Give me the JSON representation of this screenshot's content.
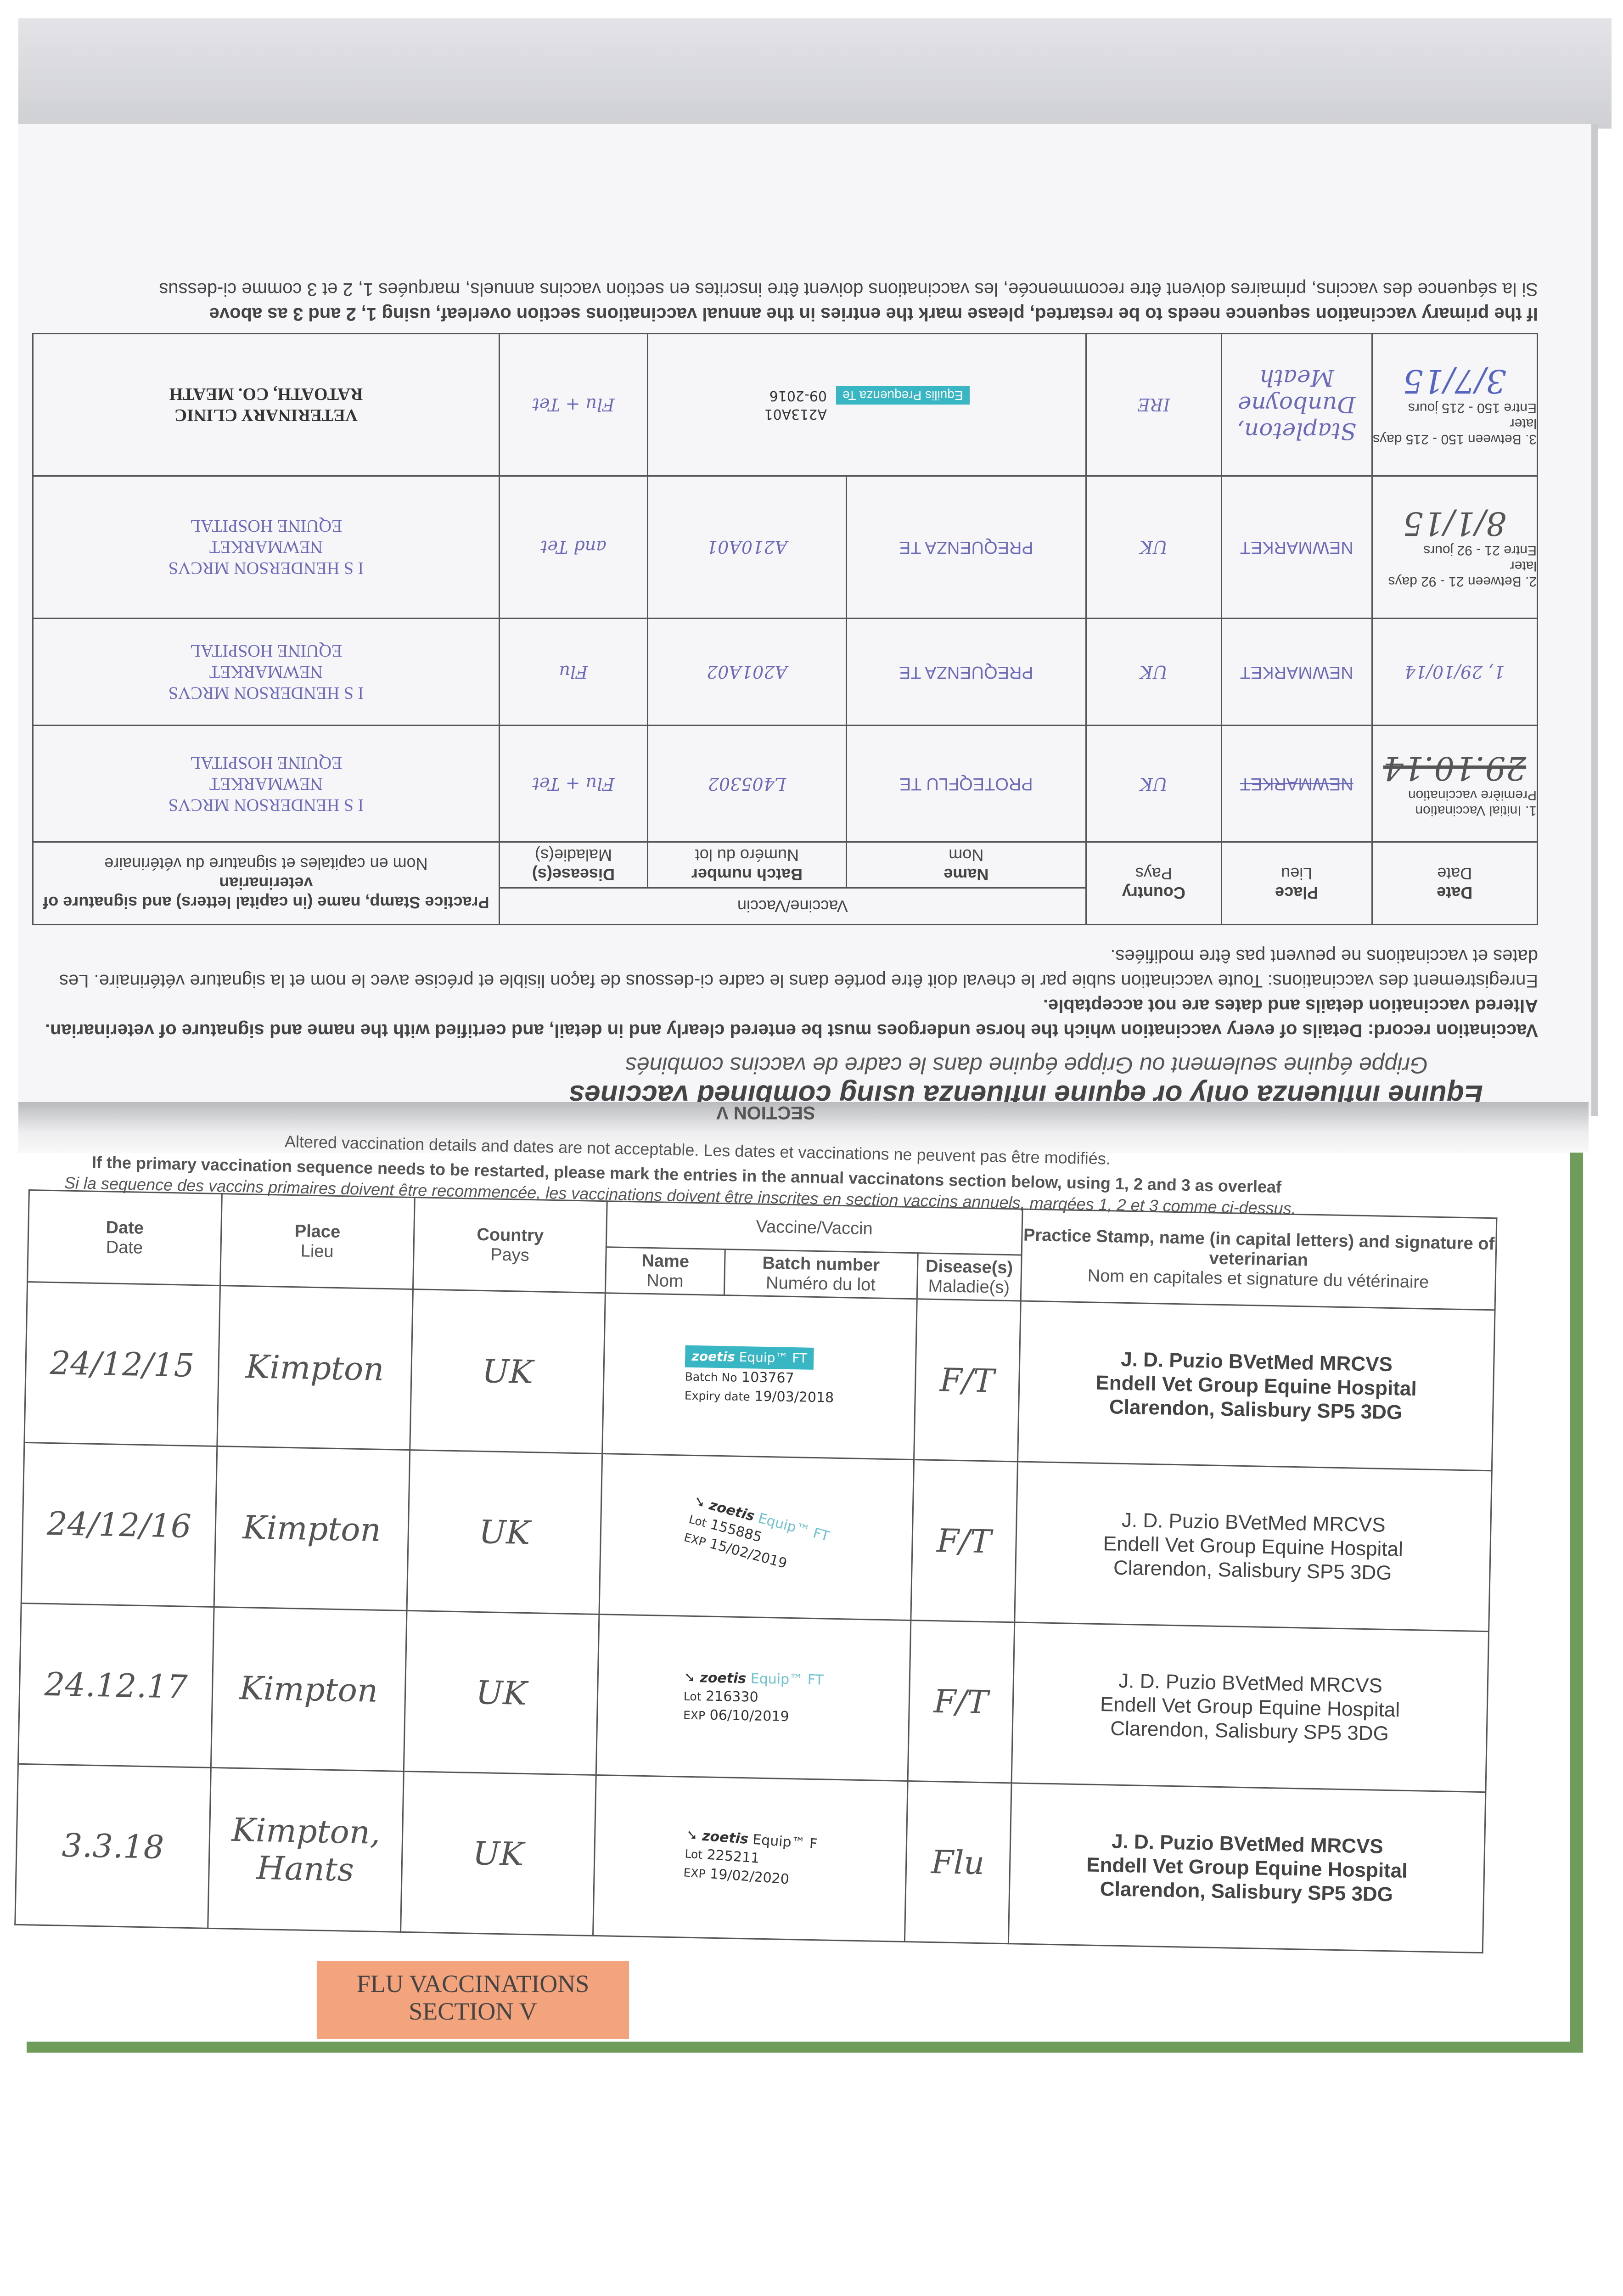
{
  "upper_page": {
    "headline": "Equine influenza only or equine influenza using combined vaccines",
    "subheadline": "Grippe équine seulement ou Grippe équine dans le cadre de vaccins combinés",
    "intro_en": "Vaccination record: Details of every vaccination which the horse undergoes must be entered clearly and in detail, and certified with the name and signature of veterinarian. Altered vaccination details and dates are not acceptable.",
    "intro_fr": "Enregistrement des vaccinations: Toute vaccination subie par le cheval doit être portée dans le cadre ci-dessous de façon lisible et précise avec le nom et la signature vétérinaire. Les dates et vaccinations ne peuvent pas être modifiées.",
    "headers": {
      "date": "Date",
      "date_fr": "Date",
      "place": "Place",
      "place_fr": "Lieu",
      "country": "Country",
      "country_fr": "Pays",
      "vaccine": "Vaccine/Vaccin",
      "name": "Name",
      "name_fr": "Nom",
      "batch": "Batch number",
      "batch_fr": "Numéro du lot",
      "disease": "Disease(s)",
      "disease_fr": "Maladie(s)",
      "stamp": "Practice Stamp, name (in capital letters) and signature of veterinarian",
      "stamp_fr": "Nom en capitales et signature du vétérinaire"
    },
    "rows": [
      {
        "label": "1. Initial Vaccination",
        "label_fr": "Première vaccination",
        "date": "29.10.14",
        "place": "NEWMARKET",
        "country": "UK",
        "name": "PROTEQFLU TE",
        "batch": "L405302",
        "disease": "Flu + Tet",
        "stamp": [
          "I S HENDERSON MRCVS",
          "NEWMARKET",
          "EQUINE HOSPITAL"
        ]
      },
      {
        "label": "",
        "label_fr": "",
        "date": "1, 29/10/14",
        "place": "NEWMARKET",
        "country": "UK",
        "name": "PREQUENZA TE",
        "batch": "A201A02",
        "disease": "Flu",
        "stamp": [
          "I S HENDERSON MRCVS",
          "NEWMARKET",
          "EQUINE HOSPITAL"
        ]
      },
      {
        "label": "2. Between 21 - 92 days later",
        "label_fr": "Entre 21 - 92 jours",
        "date": "8/1/15",
        "place": "NEWMARKET",
        "country": "UK",
        "name": "PREQUENZA TE",
        "batch": "A210A01",
        "disease": "and Tet",
        "stamp": [
          "I S HENDERSON MRCVS",
          "NEWMARKET",
          "EQUINE HOSPITAL"
        ]
      },
      {
        "label": "3. Between 150 - 215 days later",
        "label_fr": "Entre 150 - 215 jours",
        "date": "3/7/15",
        "place": "Stapleton, Dunboyne Meath",
        "country": "IRE",
        "name": "Equilis Prequenza Te",
        "batch": "A213A01",
        "expiry": "09-2016",
        "disease": "Flu + Tet",
        "stamp": [
          "VETERINARY CLINIC",
          "RATOATH, CO. MEATH"
        ]
      }
    ],
    "footer_en": "If the primary vaccination sequence needs to be restarted, please mark the entries in the annual vaccinations section overleaf, using 1, 2 and 3 as above",
    "footer_fr": "Si la séquence des vaccins, primaires doivent être recommencée, les vaccinations doivent être inscrites en section vaccins annuels, marquées 1, 2 et 3 comme ci-dessus"
  },
  "lower_page": {
    "section": "SECTION V",
    "note1": "Altered vaccination details and dates are not acceptable. Les dates et vaccinations ne peuvent pas être modifiés.",
    "note2": "If the primary vaccination sequence needs to be restarted, please mark the entries in the annual vaccinatons section below, using 1, 2 and 3 as overleaf",
    "note3": "Si la sequence des vaccins primaires doivent être recommencée, les vaccinations doivent être inscrites en section vaccins annuels, marqées 1, 2 et 3 comme ci-dessus.",
    "headers": {
      "date": "Date",
      "date_fr": "Date",
      "place": "Place",
      "place_fr": "Lieu",
      "country": "Country",
      "country_fr": "Pays",
      "vaccine": "Vaccine/Vaccin",
      "name": "Name",
      "name_fr": "Nom",
      "batch": "Batch number",
      "batch_fr": "Numéro du lot",
      "disease": "Disease(s)",
      "disease_fr": "Maladie(s)",
      "stamp": "Practice Stamp, name (in capital letters) and signature of veterinarian",
      "stamp_fr": "Nom en capitales et signature du vétérinaire"
    },
    "rows": [
      {
        "date": "24/12/15",
        "place": "Kimpton",
        "country": "UK",
        "brand": "zoetis",
        "product": "Equip™ FT",
        "lot_label": "Batch No",
        "lot": "103767",
        "exp_label": "Expiry date",
        "exp": "19/03/2018",
        "disease": "F/T",
        "vet": [
          "J. D. Puzio BVetMed MRCVS",
          "Endell Vet Group Equine Hospital",
          "Clarendon, Salisbury SP5 3DG"
        ]
      },
      {
        "date": "24/12/16",
        "place": "Kimpton",
        "country": "UK",
        "brand": "zoetis",
        "product": "Equip™ FT",
        "lot_label": "Lot",
        "lot": "155885",
        "exp_label": "EXP",
        "exp": "15/02/2019",
        "disease": "F/T",
        "vet": [
          "J. D. Puzio BVetMed MRCVS",
          "Endell Vet Group Equine Hospital",
          "Clarendon, Salisbury SP5 3DG"
        ]
      },
      {
        "date": "24.12.17",
        "place": "Kimpton",
        "country": "UK",
        "brand": "zoetis",
        "product": "Equip™ FT",
        "lot_label": "Lot",
        "lot": "216330",
        "exp_label": "EXP",
        "exp": "06/10/2019",
        "disease": "F/T",
        "vet": [
          "J. D. Puzio BVetMed MRCVS",
          "Endell Vet Group Equine Hospital",
          "Clarendon, Salisbury SP5 3DG"
        ]
      },
      {
        "date": "3.3.18",
        "place": "Kimpton, Hants",
        "country": "UK",
        "brand": "zoetis",
        "product": "Equip™ F",
        "lot_label": "Lot",
        "lot": "225211",
        "exp_label": "EXP",
        "exp": "19/02/2020",
        "disease": "Flu",
        "vet": [
          "J. D. Puzio BVetMed MRCVS",
          "Endell Vet Group Equine Hospital",
          "Clarendon, Salisbury SP5 3DG"
        ]
      }
    ],
    "tab_label_1": "FLU VACCINATIONS",
    "tab_label_2": "SECTION V"
  },
  "colors": {
    "cover_green": "#6f9c5a",
    "tab_orange": "#f4a47d",
    "ink_blue": "#5566c0",
    "zoetis_teal": "#39b6c4"
  }
}
